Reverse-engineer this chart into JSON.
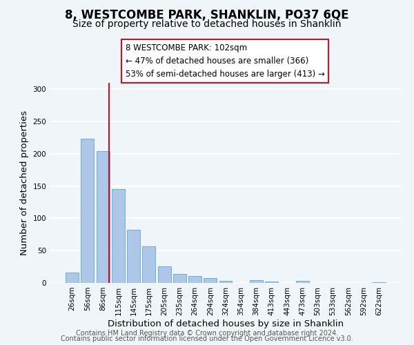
{
  "title": "8, WESTCOMBE PARK, SHANKLIN, PO37 6QE",
  "subtitle": "Size of property relative to detached houses in Shanklin",
  "xlabel": "Distribution of detached houses by size in Shanklin",
  "ylabel": "Number of detached properties",
  "footer_lines": [
    "Contains HM Land Registry data © Crown copyright and database right 2024.",
    "Contains public sector information licensed under the Open Government Licence v3.0."
  ],
  "bar_labels": [
    "26sqm",
    "56sqm",
    "86sqm",
    "115sqm",
    "145sqm",
    "175sqm",
    "205sqm",
    "235sqm",
    "264sqm",
    "294sqm",
    "324sqm",
    "354sqm",
    "384sqm",
    "413sqm",
    "443sqm",
    "473sqm",
    "503sqm",
    "533sqm",
    "562sqm",
    "592sqm",
    "622sqm"
  ],
  "bar_values": [
    16,
    223,
    204,
    145,
    82,
    57,
    26,
    14,
    11,
    7,
    3,
    0,
    4,
    2,
    0,
    3,
    0,
    0,
    0,
    0,
    1
  ],
  "bar_color": "#aec6e8",
  "bar_edge_color": "#6aafd6",
  "ylim": [
    0,
    310
  ],
  "yticks": [
    0,
    50,
    100,
    150,
    200,
    250,
    300
  ],
  "vline_x": 2.42,
  "vline_color": "#cc1122",
  "annotation_title": "8 WESTCOMBE PARK: 102sqm",
  "annotation_line1": "← 47% of detached houses are smaller (366)",
  "annotation_line2": "53% of semi-detached houses are larger (413) →",
  "annotation_box_color": "#cc1122",
  "background_color": "#f0f5f9",
  "grid_color": "#ffffff",
  "title_fontsize": 12,
  "subtitle_fontsize": 10,
  "axis_label_fontsize": 9.5,
  "tick_fontsize": 7.5,
  "footer_fontsize": 7,
  "annotation_fontsize": 8.5
}
